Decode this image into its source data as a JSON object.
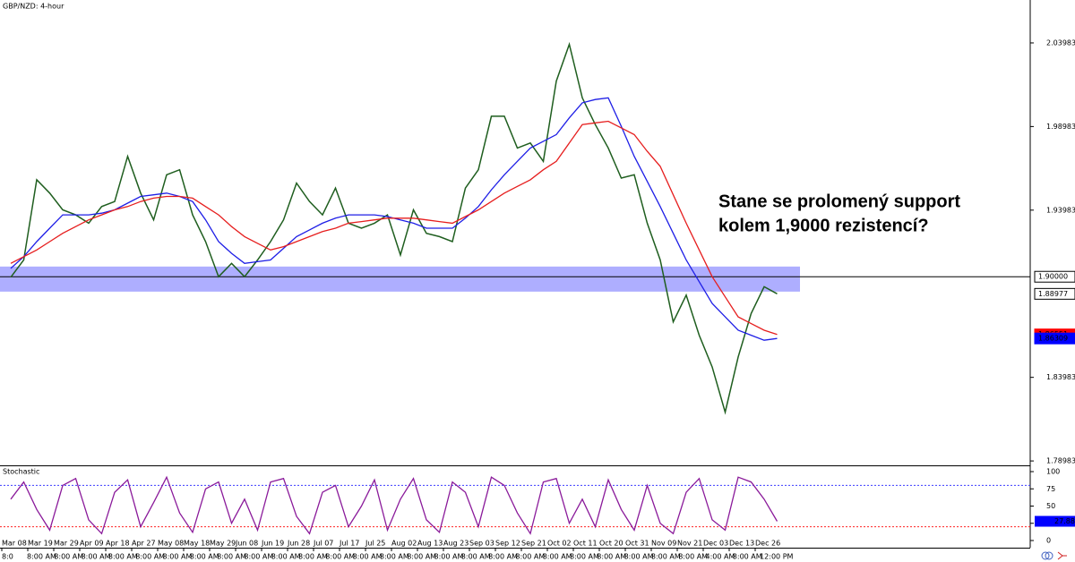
{
  "chart_data": [
    {
      "type": "line",
      "title": "GBP/NZD: 4-hour",
      "annotation": [
        "Stane se prolomený support",
        "kolem 1,9000 rezistencí?"
      ],
      "categories": [
        "Mar 08",
        null,
        "Mar 19",
        null,
        "Mar 29",
        null,
        "Apr 09",
        null,
        "Apr 18",
        null,
        "Apr 27",
        null,
        "May 08",
        null,
        "May 18",
        null,
        "May 29",
        null,
        "Jun 08",
        null,
        "Jun 19",
        null,
        "Jun 28",
        null,
        "Jul 07",
        null,
        "Jul 17",
        null,
        "Jul 25",
        null,
        "Aug 02",
        null,
        "Aug 13",
        null,
        "Aug 23",
        null,
        "Sep 03",
        null,
        "Sep 12",
        null,
        "Sep 21",
        null,
        "Oct 02",
        null,
        "Oct 11",
        null,
        "Oct 20",
        null,
        "Oct 31",
        null,
        "Nov 09",
        null,
        "Nov 21",
        null,
        "Dec 03",
        null,
        "Dec 13",
        null,
        "Dec 26",
        null
      ],
      "time_labels": [
        "8:0",
        "8:00 AM",
        "8:00 AM",
        "8:00 AM",
        "8:00 AM",
        "8:00 AM",
        "8:00 AM",
        "8:00 AM",
        "8:00 AM",
        "8:00 AM",
        "8:00 AM",
        "8:00 AM",
        "8:00 AM",
        "8:00 AM",
        "8:00 AM",
        "8:00 AM",
        "8:00 AM",
        "8:00 AM",
        "8:00 AM",
        "8:00 AM",
        "8:00 AM",
        "8:00 AM",
        "8:00 AM",
        "8:00 AM",
        "8:00 AM",
        "8:00 AM",
        "4:00 AM",
        "8:00 AM",
        "12:00 PM"
      ],
      "series": [
        {
          "color": "#1f5e1f",
          "values": [
            1.8997,
            1.91,
            1.958,
            1.95,
            1.94,
            1.937,
            1.932,
            1.942,
            1.945,
            1.972,
            1.95,
            1.934,
            1.961,
            1.964,
            1.937,
            1.921,
            1.9,
            1.908,
            1.9,
            1.91,
            1.921,
            1.934,
            1.956,
            1.945,
            1.937,
            1.953,
            1.932,
            1.929,
            1.932,
            1.937,
            1.913,
            1.94,
            1.926,
            1.924,
            1.921,
            1.953,
            1.964,
            1.996,
            1.996,
            1.977,
            1.98,
            1.969,
            2.017,
            2.039,
            2.007,
            1.991,
            1.977,
            1.959,
            1.961,
            1.932,
            1.91,
            1.873,
            1.889,
            1.865,
            1.846,
            1.819,
            1.852,
            1.878,
            1.894,
            1.88977
          ]
        },
        {
          "color": "#1e1ee6",
          "values": [
            1.905,
            1.912,
            1.921,
            1.929,
            1.937,
            1.937,
            1.937,
            1.938,
            1.94,
            1.944,
            1.948,
            1.949,
            1.95,
            1.948,
            1.945,
            1.934,
            1.921,
            1.914,
            1.908,
            1.909,
            1.91,
            1.917,
            1.924,
            1.928,
            1.932,
            1.935,
            1.937,
            1.937,
            1.937,
            1.936,
            1.934,
            1.932,
            1.929,
            1.929,
            1.929,
            1.935,
            1.942,
            1.952,
            1.961,
            1.969,
            1.977,
            1.981,
            1.985,
            1.995,
            2.004,
            2.006,
            2.007,
            1.99,
            1.972,
            1.957,
            1.942,
            1.926,
            1.91,
            1.897,
            1.884,
            1.876,
            1.868,
            1.865,
            1.862,
            1.86309
          ]
        },
        {
          "color": "#e61e1e",
          "values": [
            1.908,
            1.912,
            1.916,
            1.921,
            1.926,
            1.93,
            1.934,
            1.937,
            1.94,
            1.942,
            1.945,
            1.947,
            1.948,
            1.948,
            1.947,
            1.942,
            1.937,
            1.93,
            1.924,
            1.92,
            1.916,
            1.918,
            1.921,
            1.924,
            1.927,
            1.929,
            1.932,
            1.933,
            1.934,
            1.935,
            1.935,
            1.935,
            1.934,
            1.933,
            1.932,
            1.936,
            1.94,
            1.945,
            1.95,
            1.954,
            1.958,
            1.964,
            1.969,
            1.98,
            1.991,
            1.992,
            1.993,
            1.989,
            1.985,
            1.975,
            1.966,
            1.949,
            1.932,
            1.916,
            1.9,
            1.888,
            1.876,
            1.872,
            1.868,
            1.86551
          ]
        }
      ],
      "ylim": [
        1.7872,
        2.0655
      ],
      "yticks": [
        2.03983,
        1.98983,
        1.93983,
        1.83983,
        1.78983
      ],
      "support_zone": [
        1.8911,
        1.9061
      ],
      "zone_color": "#9a9aff",
      "markers": [
        {
          "value": 1.9,
          "label": "1.90000",
          "color": "#000000"
        },
        {
          "value": 1.88977,
          "color": "#000000"
        },
        {
          "value": 1.86551,
          "color": "#ff0000"
        },
        {
          "value": 1.86309,
          "color": "#0000ff"
        }
      ]
    },
    {
      "type": "line",
      "title": "Stochastic",
      "ylim": [
        -10.4,
        107.8
      ],
      "yticks": [
        100,
        75,
        50,
        25,
        0
      ],
      "levels": [
        {
          "value": 80,
          "color": "#3c3cff"
        },
        {
          "value": 20,
          "color": "#ff2020"
        }
      ],
      "series": [
        {
          "color": "#8a1a9a",
          "values": [
            60,
            85,
            45,
            15,
            80,
            90,
            30,
            10,
            70,
            88,
            20,
            55,
            92,
            40,
            12,
            75,
            85,
            25,
            60,
            15,
            85,
            90,
            35,
            10,
            70,
            80,
            20,
            50,
            88,
            15,
            60,
            90,
            30,
            12,
            85,
            70,
            20,
            92,
            80,
            40,
            10,
            85,
            90,
            25,
            60,
            20,
            88,
            45,
            15,
            80,
            25,
            10,
            70,
            90,
            30,
            15,
            92,
            85,
            60,
            27.88
          ]
        }
      ]
    }
  ]
}
